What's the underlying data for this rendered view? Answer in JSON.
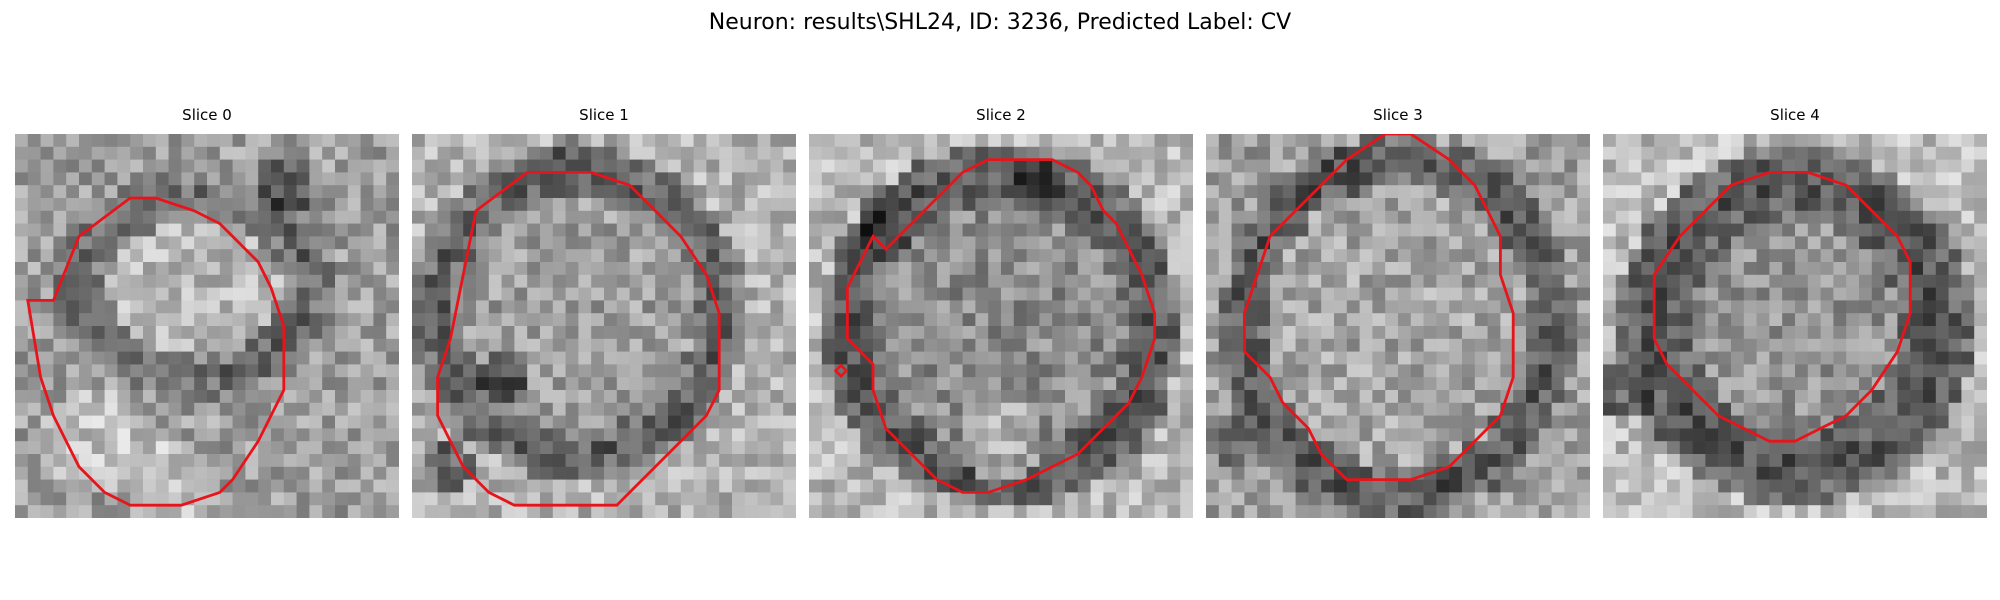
{
  "figure": {
    "title": "Neuron: results\\SHL24, ID: 3236, Predicted Label: CV",
    "contour_color": "#e8141b"
  },
  "slices": [
    {
      "title": "Slice 0"
    },
    {
      "title": "Slice 1"
    },
    {
      "title": "Slice 2"
    },
    {
      "title": "Slice 3"
    },
    {
      "title": "Slice 4"
    }
  ]
}
